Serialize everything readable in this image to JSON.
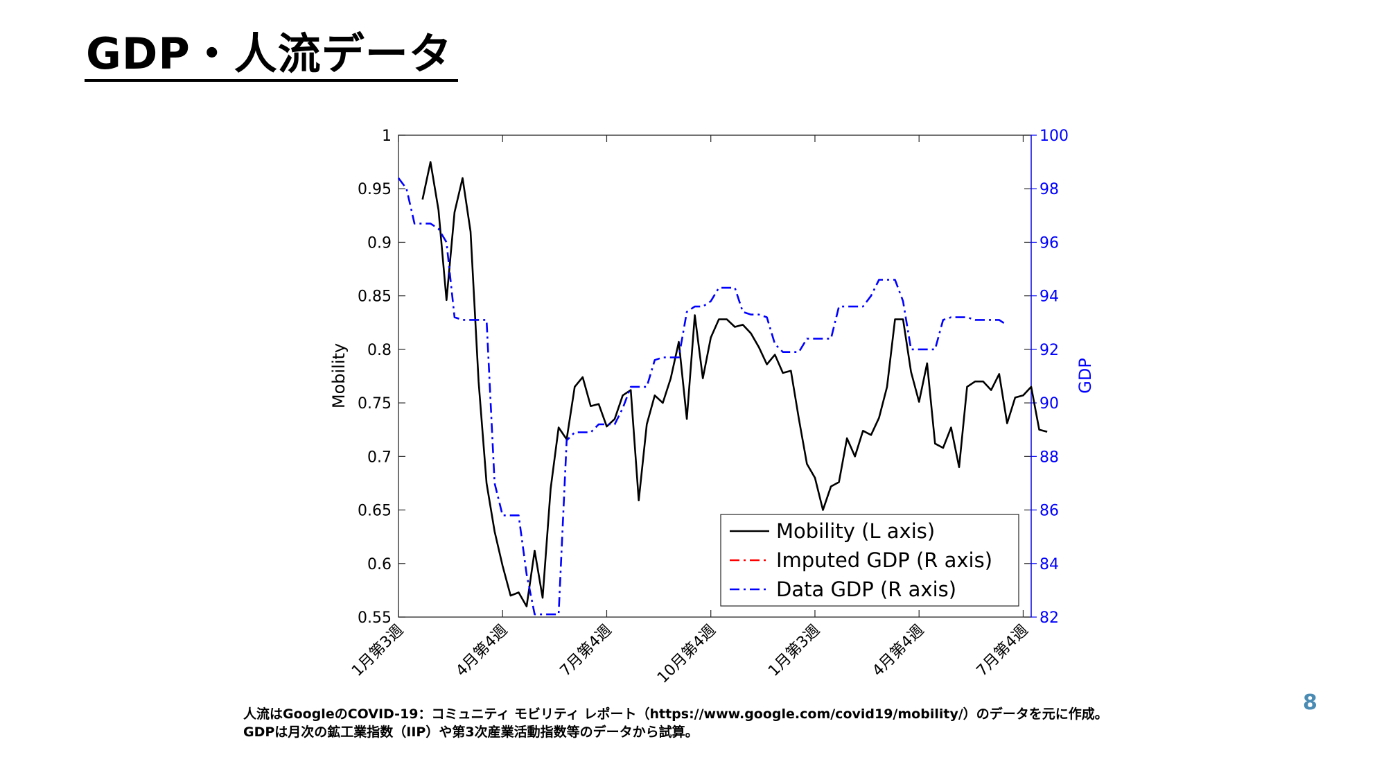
{
  "slide": {
    "title": "GDP・人流データ",
    "page_number": "8",
    "footnotes": [
      "人流はGoogleのCOVID-19：コミュニティ モビリティ レポート（https://www.google.com/covid19/mobility/）のデータを元に作成。",
      "GDPは月次の鉱工業指数（IIP）や第3次産業活動指数等のデータから試算。"
    ]
  },
  "chart_data": {
    "type": "line",
    "title": "",
    "xlabel": "",
    "ylabel": "Mobility",
    "ylabel_right": "GDP",
    "ylim": [
      0.55,
      1
    ],
    "ylim_right": [
      82,
      100
    ],
    "yticks": [
      "0.55",
      "0.6",
      "0.65",
      "0.7",
      "0.75",
      "0.8",
      "0.85",
      "0.9",
      "0.95",
      "1"
    ],
    "yticks_right": [
      "82",
      "84",
      "86",
      "88",
      "90",
      "92",
      "94",
      "96",
      "98",
      "100"
    ],
    "xticks": [
      {
        "week": 0,
        "label": "1月第3週"
      },
      {
        "week": 13,
        "label": "4月第4週"
      },
      {
        "week": 26,
        "label": "7月第4週"
      },
      {
        "week": 39,
        "label": "10月第4週"
      },
      {
        "week": 52,
        "label": "1月第3週"
      },
      {
        "week": 65,
        "label": "4月第4週"
      },
      {
        "week": 78,
        "label": "7月第4週"
      }
    ],
    "x_range": [
      0,
      79
    ],
    "grid": false,
    "legend_position": "bottom-right",
    "series": [
      {
        "name": "Mobility (L axis)",
        "axis": "left",
        "color": "#000000",
        "style": "solid",
        "start_week": 3,
        "values": [
          0.94,
          0.975,
          0.93,
          0.846,
          0.928,
          0.96,
          0.91,
          0.77,
          0.675,
          0.63,
          0.598,
          0.57,
          0.573,
          0.56,
          0.612,
          0.568,
          0.67,
          0.727,
          0.716,
          0.765,
          0.774,
          0.747,
          0.749,
          0.728,
          0.735,
          0.757,
          0.762,
          0.659,
          0.73,
          0.757,
          0.75,
          0.773,
          0.807,
          0.735,
          0.832,
          0.773,
          0.811,
          0.828,
          0.828,
          0.821,
          0.823,
          0.815,
          0.802,
          0.786,
          0.795,
          0.778,
          0.78,
          0.735,
          0.693,
          0.68,
          0.65,
          0.672,
          0.676,
          0.717,
          0.7,
          0.724,
          0.72,
          0.736,
          0.765,
          0.828,
          0.828,
          0.779,
          0.751,
          0.787,
          0.712,
          0.708,
          0.727,
          0.69,
          0.765,
          0.77,
          0.77,
          0.762,
          0.777,
          0.731,
          0.755,
          0.757,
          0.765,
          0.725,
          0.723
        ]
      },
      {
        "name": "Imputed GDP (R axis)",
        "axis": "right",
        "color": "#ff0000",
        "style": "dashdot",
        "start_week": 0,
        "values": []
      },
      {
        "name": "Data GDP (R axis)",
        "axis": "right",
        "color": "#0000ff",
        "style": "dashdot",
        "start_week": 0,
        "values": [
          98.4,
          98.0,
          96.7,
          96.7,
          96.7,
          96.5,
          96.0,
          93.2,
          93.1,
          93.1,
          93.1,
          93.1,
          87.0,
          85.8,
          85.8,
          85.8,
          83.6,
          82.1,
          82.1,
          82.1,
          82.1,
          88.6,
          88.9,
          88.9,
          88.9,
          89.2,
          89.2,
          89.2,
          89.8,
          90.6,
          90.6,
          90.6,
          91.6,
          91.7,
          91.7,
          91.7,
          93.4,
          93.6,
          93.6,
          93.8,
          94.3,
          94.3,
          94.3,
          93.4,
          93.3,
          93.3,
          93.2,
          92.2,
          91.9,
          91.9,
          91.9,
          92.4,
          92.4,
          92.4,
          92.4,
          93.6,
          93.6,
          93.6,
          93.6,
          94.0,
          94.6,
          94.6,
          94.6,
          93.8,
          92.0,
          92.0,
          92.0,
          92.0,
          93.1,
          93.2,
          93.2,
          93.2,
          93.1,
          93.1,
          93.1,
          93.1,
          92.9
        ]
      }
    ]
  }
}
